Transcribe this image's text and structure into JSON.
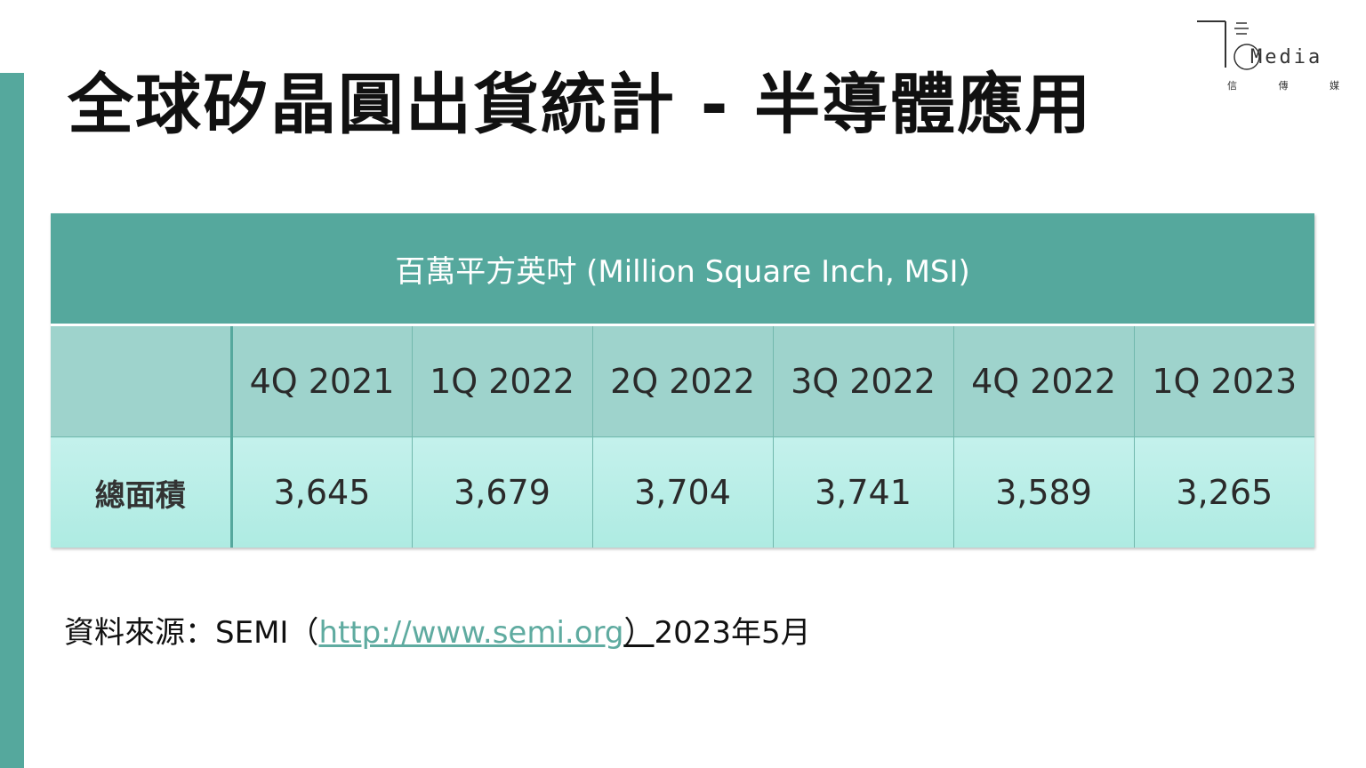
{
  "slide": {
    "title": "全球矽晶圓出貨統計 - 半導體應用"
  },
  "logo": {
    "text": "Media",
    "subtitle": [
      "信",
      "傳",
      "媒"
    ]
  },
  "table": {
    "unit_label": "百萬平方英吋 (Million Square Inch, MSI)",
    "quarters": [
      "4Q 2021",
      "1Q 2022",
      "2Q 2022",
      "3Q 2022",
      "4Q 2022",
      "1Q 2023"
    ],
    "row_label": "總面積",
    "values": [
      "3,645",
      "3,679",
      "3,704",
      "3,741",
      "3,589",
      "3,265"
    ]
  },
  "source": {
    "prefix": "資料來源：SEMI（",
    "link": "http://www.semi.org",
    "close": "）",
    "date": "2023年5月"
  },
  "colors": {
    "accent": "#55a89d",
    "header_row": "#9ed3cc",
    "value_row": "#c4f1ec",
    "link": "#5faba0"
  }
}
